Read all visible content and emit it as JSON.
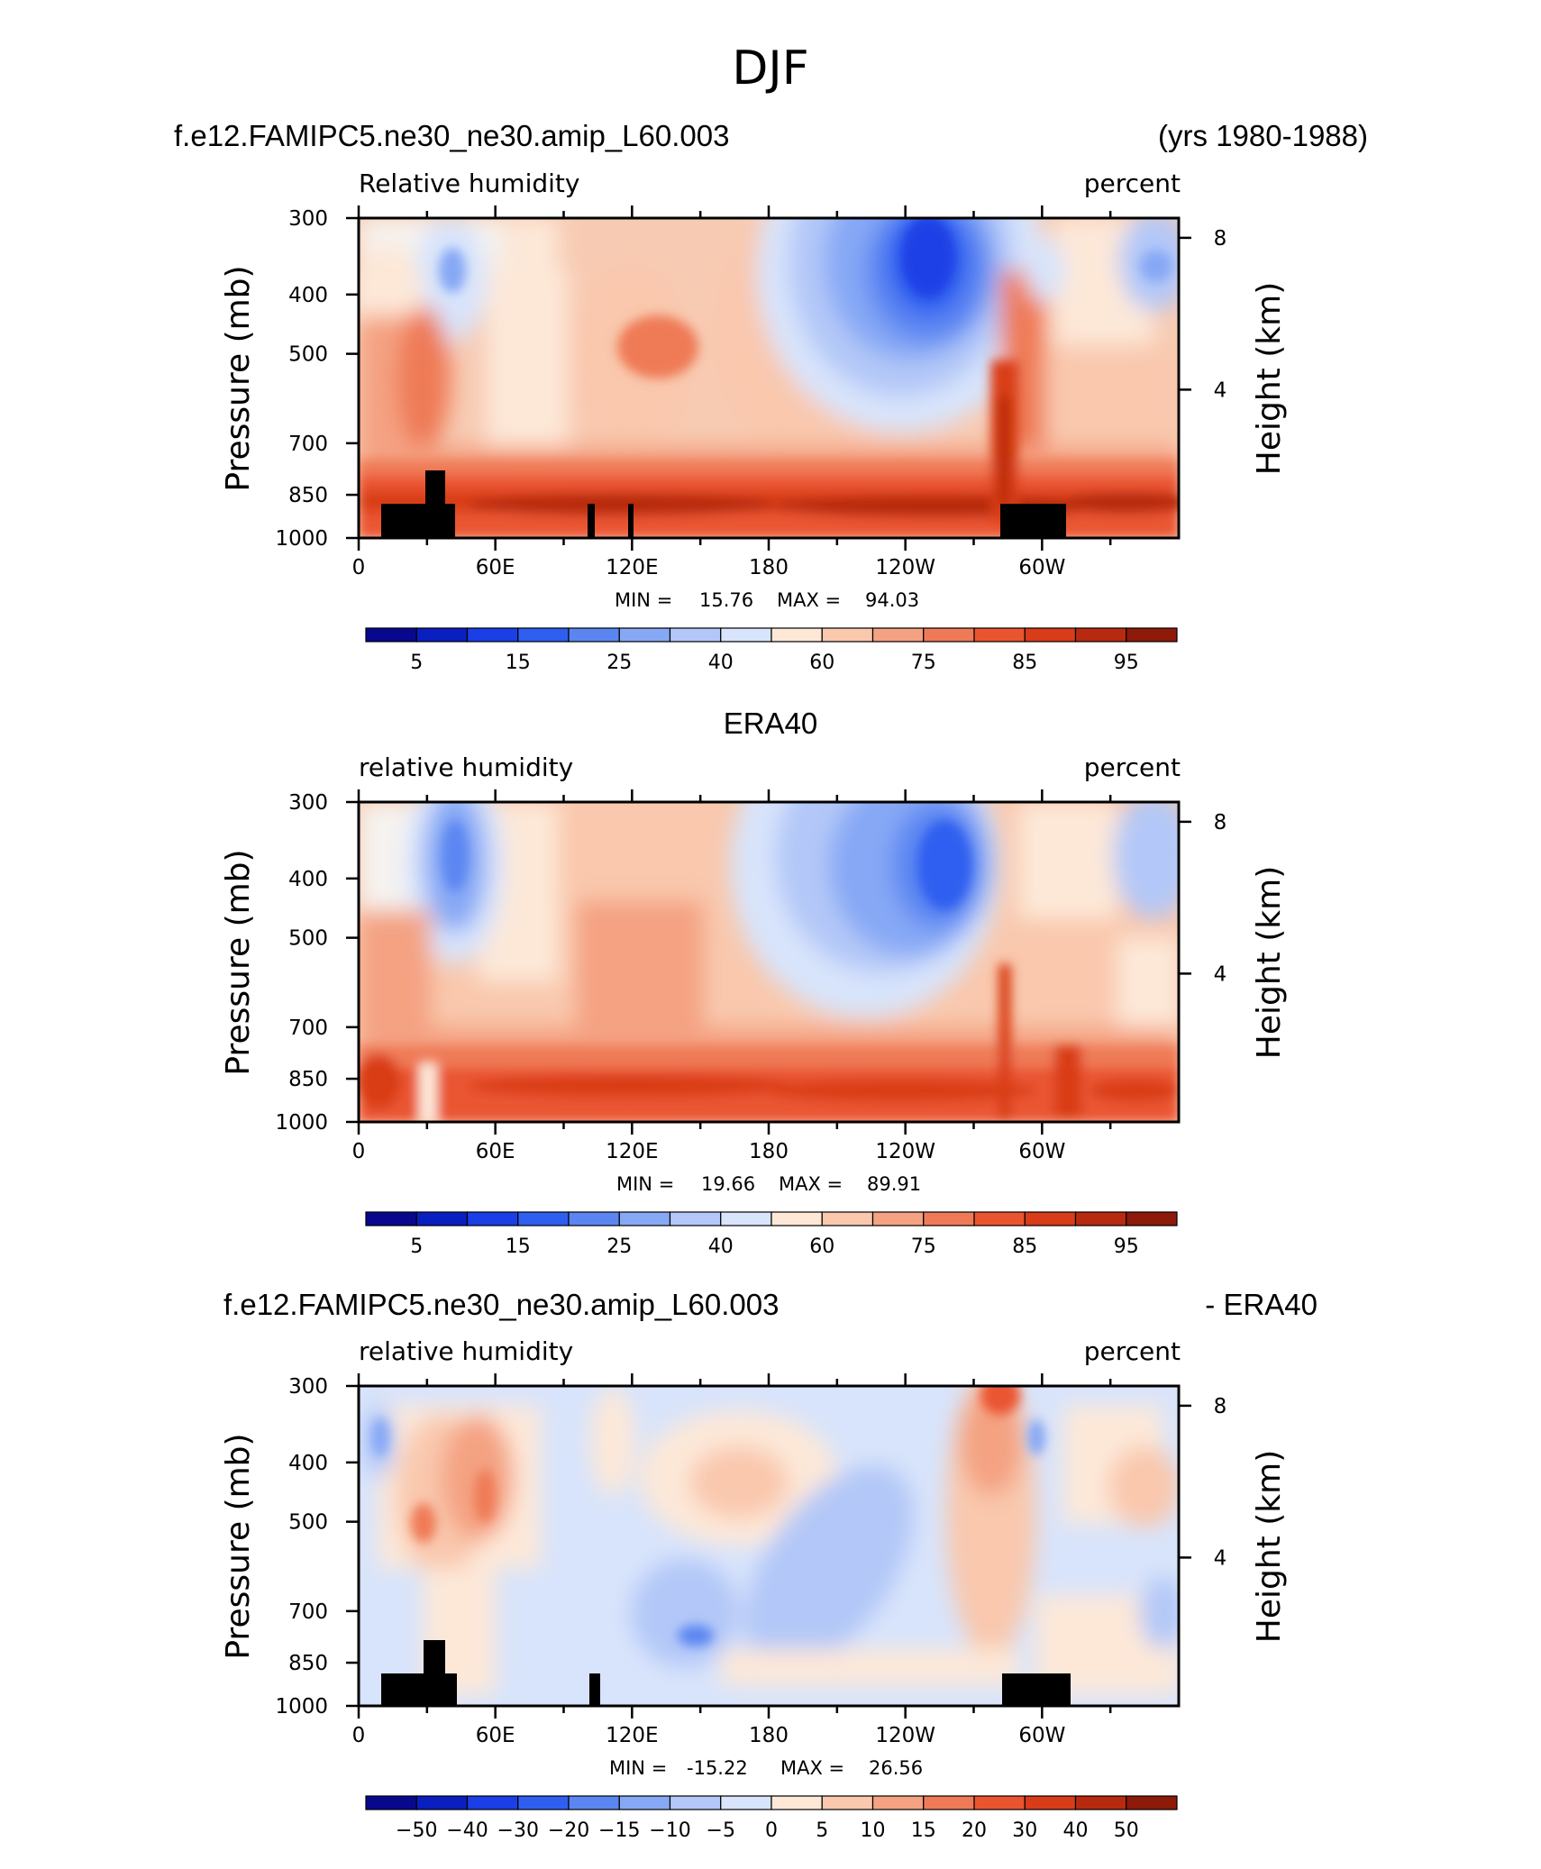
{
  "page_title": "DJF",
  "colors": {
    "blue_scale": [
      "#08088f",
      "#0a1fbf",
      "#1a3fe6",
      "#2f5ff0",
      "#5b86f2",
      "#86a8f5",
      "#b3c8f8",
      "#d8e4fb"
    ],
    "red_scale": [
      "#fde8d8",
      "#f9c8ad",
      "#f4a282",
      "#ef7a57",
      "#ea5530",
      "#d93c18",
      "#b82a10",
      "#8e1a0a"
    ],
    "land": "#000000"
  },
  "panels": [
    {
      "left_header": "f.e12.FAMIPC5.ne30_ne30.amip_L60.003",
      "right_header": "(yrs 1980-1988)",
      "center_header": "",
      "variable_label": "Relative humidity",
      "units_label": "percent",
      "ylabel": "Pressure (mb)",
      "ylabel_right": "Height (km)",
      "stats": {
        "min_label": "MIN =",
        "min_value": "15.76",
        "max_label": "MAX =",
        "max_value": "94.03"
      },
      "colorbar_ticks": [
        "5",
        "15",
        "25",
        "40",
        "60",
        "75",
        "85",
        "95"
      ]
    },
    {
      "left_header": "",
      "right_header": "",
      "center_header": "ERA40",
      "variable_label": "relative humidity",
      "units_label": "percent",
      "ylabel": "Pressure (mb)",
      "ylabel_right": "Height (km)",
      "stats": {
        "min_label": "MIN =",
        "min_value": "19.66",
        "max_label": "MAX =",
        "max_value": "89.91"
      },
      "colorbar_ticks": [
        "5",
        "15",
        "25",
        "40",
        "60",
        "75",
        "85",
        "95"
      ]
    },
    {
      "left_header": "f.e12.FAMIPC5.ne30_ne30.amip_L60.003",
      "right_header": "- ERA40",
      "center_header": "",
      "variable_label": "relative humidity",
      "units_label": "percent",
      "ylabel": "Pressure (mb)",
      "ylabel_right": "Height (km)",
      "stats": {
        "min_label": "MIN =",
        "min_value": "-15.22",
        "max_label": "MAX =",
        "max_value": "26.56"
      },
      "colorbar_ticks": [
        "−50",
        "−40",
        "−30",
        "−20",
        "−15",
        "−10",
        "−5",
        "0",
        "5",
        "10",
        "15",
        "20",
        "30",
        "40",
        "50"
      ]
    }
  ],
  "chart_data": [
    {
      "type": "heatmap",
      "x_tick_labels": [
        "0",
        "60E",
        "120E",
        "180",
        "120W",
        "60W"
      ],
      "y_tick_labels": [
        "300",
        "400",
        "500",
        "700",
        "850",
        "1000"
      ],
      "y_right_tick_labels": [
        "8",
        "4"
      ],
      "levels": [
        5,
        10,
        15,
        20,
        25,
        30,
        40,
        50,
        60,
        65,
        75,
        80,
        85,
        90,
        95
      ],
      "min": 15.76,
      "max": 94.03,
      "features": [
        "dry minimum near 150W-120W at 400 mb",
        "moist boundary layer maximum near 1000-900 mb"
      ]
    },
    {
      "type": "heatmap",
      "x_tick_labels": [
        "0",
        "60E",
        "120E",
        "180",
        "120W",
        "60W"
      ],
      "y_tick_labels": [
        "300",
        "400",
        "500",
        "700",
        "850",
        "1000"
      ],
      "y_right_tick_labels": [
        "8",
        "4"
      ],
      "levels": [
        5,
        10,
        15,
        20,
        25,
        30,
        40,
        50,
        60,
        65,
        75,
        80,
        85,
        90,
        95
      ],
      "min": 19.66,
      "max": 89.91,
      "features": [
        "dry minimum near 120W at 400-500 mb",
        "dry tongue near 40E at 400 mb"
      ]
    },
    {
      "type": "heatmap",
      "x_tick_labels": [
        "0",
        "60E",
        "120E",
        "180",
        "120W",
        "60W"
      ],
      "y_tick_labels": [
        "300",
        "400",
        "500",
        "700",
        "850",
        "1000"
      ],
      "y_right_tick_labels": [
        "8",
        "4"
      ],
      "levels": [
        -50,
        -40,
        -30,
        -20,
        -15,
        -10,
        -5,
        0,
        5,
        10,
        15,
        20,
        30,
        40,
        50
      ],
      "min": -15.22,
      "max": 26.56,
      "features": [
        "positive bias near 80W at 300 mb",
        "negative bias near 140E at 850 mb"
      ]
    }
  ]
}
